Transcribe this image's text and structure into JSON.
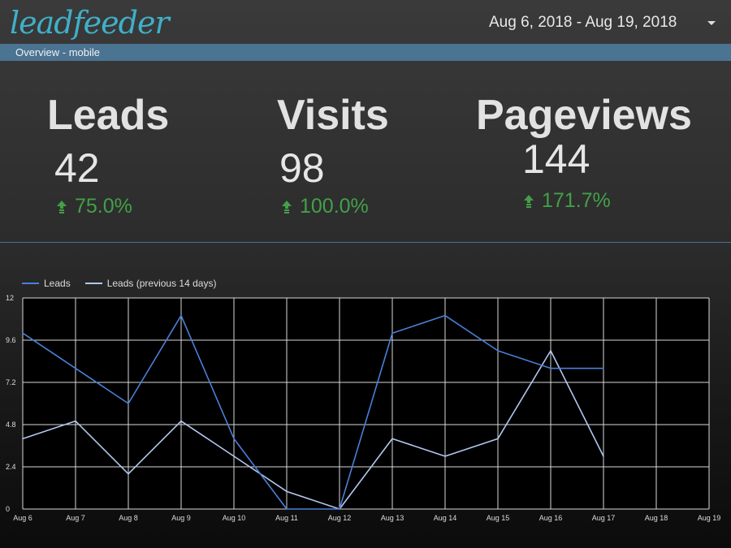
{
  "header": {
    "logo_text": "leadfeeder",
    "date_range": "Aug 6, 2018 - Aug 19, 2018"
  },
  "subheader": {
    "label": "Overview - mobile"
  },
  "kpis": [
    {
      "title": "Leads",
      "value": "42",
      "change": "75.0%",
      "direction": "up-arrow-icon"
    },
    {
      "title": "Visits",
      "value": "98",
      "change": "100.0%",
      "direction": "up-arrow-icon"
    },
    {
      "title": "Pageviews",
      "value": "144",
      "change": "171.7%",
      "direction": "up-arrow-icon"
    }
  ],
  "colors": {
    "accent": "#4b7392",
    "positive": "#43a047",
    "series_current": "#4a7fd8",
    "series_previous": "#b3c7ee"
  },
  "chart_data": {
    "type": "line",
    "categories": [
      "Aug 6",
      "Aug 7",
      "Aug 8",
      "Aug 9",
      "Aug 10",
      "Aug 11",
      "Aug 12",
      "Aug 13",
      "Aug 14",
      "Aug 15",
      "Aug 16",
      "Aug 17",
      "Aug 18",
      "Aug 19"
    ],
    "series": [
      {
        "name": "Leads",
        "values": [
          10,
          8,
          6,
          11,
          4,
          0,
          0,
          10,
          11,
          9,
          8,
          8,
          null,
          null
        ]
      },
      {
        "name": "Leads (previous 14 days)",
        "values": [
          4,
          5,
          2,
          5,
          3,
          1,
          0,
          4,
          3,
          4,
          9,
          3,
          null,
          null
        ]
      }
    ],
    "y_ticks": [
      "0",
      "2.4",
      "4.8",
      "7.2",
      "9.6",
      "12"
    ],
    "ylim": [
      0,
      12
    ],
    "grid": true,
    "legend_position": "top-left"
  }
}
